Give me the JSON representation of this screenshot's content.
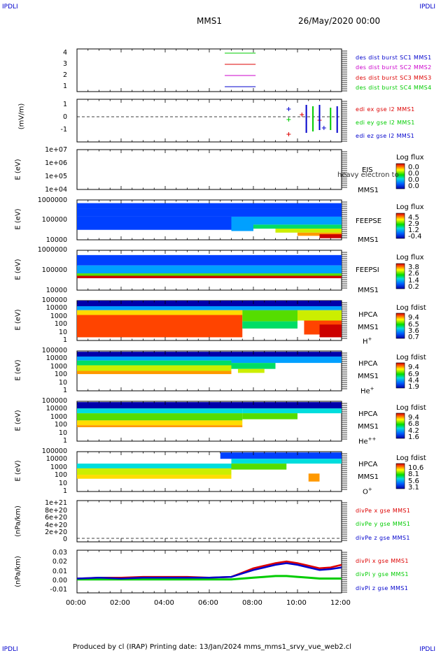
{
  "header": {
    "corner_left": "IPDLI",
    "corner_right": "IPDLI",
    "mission": "MMS1",
    "datetime": "26/May/2020 00:00"
  },
  "footer": {
    "text": "Produced by cl (IRAP)   Printing date: 13/Jan/2024   mms_mms1_srvy_vue_web2.cl",
    "corner_left": "IPDLI",
    "corner_right": "IPDLI"
  },
  "xaxis": {
    "ticks": [
      "00:00",
      "02:00",
      "04:00",
      "06:00",
      "08:00",
      "10:00",
      "12:00"
    ],
    "range_hours": [
      0,
      12
    ]
  },
  "colors": {
    "red": "#dd0000",
    "green": "#00cc00",
    "blue": "#0000cc",
    "magenta": "#cc00cc"
  },
  "panels": {
    "burst": {
      "yticks": [
        "4",
        "3",
        "2",
        "1"
      ],
      "legend": [
        {
          "text": "des dist burst SC1 MMS1",
          "color": "#0000cc"
        },
        {
          "text": "des dist burst SC2 MMS2",
          "color": "#cc00cc"
        },
        {
          "text": "des dist burst SC3 MMS3",
          "color": "#dd0000"
        },
        {
          "text": "des dist burst SC4 MMS4",
          "color": "#00cc00"
        }
      ]
    },
    "edi": {
      "ylabel": "(mV/m)",
      "yticks": [
        "1",
        "0",
        "-1"
      ],
      "legend": [
        {
          "text": "edi ex gse l2 MMS1",
          "color": "#dd0000"
        },
        {
          "text": "edi ey gse l2 MMS1",
          "color": "#00cc00"
        },
        {
          "text": "edi ez gse l2 MMS1",
          "color": "#0000cc"
        }
      ]
    },
    "eis": {
      "ylabel": "E (eV)",
      "yticks": [
        "1e+07",
        "1e+06",
        "1e+05",
        "1e+04"
      ],
      "side": [
        "EIS",
        "MMS1"
      ],
      "overlay": "heavy electron to",
      "cbar_title": "Log flux",
      "cbar_vals": [
        "0.0",
        "0.0",
        "0.0",
        "0.0"
      ]
    },
    "feepse": {
      "ylabel": "E (eV)",
      "yticks": [
        "1000000",
        "100000",
        "10000"
      ],
      "side": [
        "FEEPSE",
        "MMS1"
      ],
      "cbar_title": "Log flux",
      "cbar_vals": [
        "4.5",
        "2.9",
        "1.2",
        "-0.4"
      ]
    },
    "feepsi": {
      "ylabel": "E (eV)",
      "yticks": [
        "1000000",
        "100000",
        "10000"
      ],
      "side": [
        "FEEPSI",
        "MMS1"
      ],
      "cbar_title": "Log flux",
      "cbar_vals": [
        "3.8",
        "2.6",
        "1.4",
        "0.2"
      ]
    },
    "hpca_h": {
      "ylabel": "E (eV)",
      "yticks": [
        "100000",
        "10000",
        "1000",
        "100",
        "10",
        "1"
      ],
      "side": [
        "HPCA",
        "MMS1"
      ],
      "species": "H",
      "charge": "+",
      "cbar_title": "Log fdist",
      "cbar_vals": [
        "9.4",
        "6.5",
        "3.6",
        "0.7"
      ]
    },
    "hpca_he": {
      "ylabel": "E (eV)",
      "yticks": [
        "100000",
        "10000",
        "1000",
        "100",
        "10",
        "1"
      ],
      "side": [
        "HPCA",
        "MMS1"
      ],
      "species": "He",
      "charge": "+",
      "cbar_title": "Log fdist",
      "cbar_vals": [
        "9.4",
        "6.9",
        "4.4",
        "1.9"
      ]
    },
    "hpca_hepp": {
      "ylabel": "E (eV)",
      "yticks": [
        "100000",
        "10000",
        "1000",
        "100",
        "10",
        "1"
      ],
      "side": [
        "HPCA",
        "MMS1"
      ],
      "species": "He",
      "charge": "++",
      "cbar_title": "Log fdist",
      "cbar_vals": [
        "9.4",
        "6.8",
        "4.2",
        "1.6"
      ]
    },
    "hpca_o": {
      "ylabel": "E (eV)",
      "yticks": [
        "100000",
        "10000",
        "1000",
        "100",
        "10",
        "1"
      ],
      "side": [
        "HPCA",
        "MMS1"
      ],
      "species": "O",
      "charge": "+",
      "cbar_title": "Log fdist",
      "cbar_vals": [
        "10.6",
        "8.1",
        "5.6",
        "3.1"
      ]
    },
    "divpe": {
      "ylabel": "(nPa/km)",
      "yticks": [
        "1e+21",
        "8e+20",
        "6e+20",
        "4e+20",
        "2e+20",
        "0"
      ],
      "legend": [
        {
          "text": "divPe x gse MMS1",
          "color": "#dd0000"
        },
        {
          "text": "divPe y gse MMS1",
          "color": "#00cc00"
        },
        {
          "text": "divPe z gse MMS1",
          "color": "#0000cc"
        }
      ]
    },
    "divpi": {
      "ylabel": "(nPa/km)",
      "yticks": [
        "0.03",
        "0.02",
        "0.01",
        "0.00",
        "-0.01"
      ],
      "legend": [
        {
          "text": "divPi x gse MMS1",
          "color": "#dd0000"
        },
        {
          "text": "divPi y gse MMS1",
          "color": "#00cc00"
        },
        {
          "text": "divPi z gse MMS1",
          "color": "#0000cc"
        }
      ]
    }
  },
  "chart_data": {
    "type": "line",
    "title": "MMS1",
    "x_unit": "hours UT",
    "xlim": [
      0,
      12
    ],
    "burst_intervals": [
      {
        "name": "des dist burst SC1 MMS1",
        "level": 1,
        "x": [
          6.7,
          8.1
        ]
      },
      {
        "name": "des dist burst SC2 MMS2",
        "level": 2,
        "x": [
          6.7,
          8.1
        ]
      },
      {
        "name": "des dist burst SC3 MMS3",
        "level": 3,
        "x": [
          6.7,
          8.1
        ]
      },
      {
        "name": "des dist burst SC4 MMS4",
        "level": 4,
        "x": [
          6.7,
          8.1
        ]
      }
    ],
    "divpi": {
      "ylim": [
        -0.01,
        0.03
      ],
      "x": [
        0,
        1,
        2,
        3,
        4,
        5,
        6,
        7,
        7.5,
        8,
        8.5,
        9,
        9.5,
        10,
        10.5,
        11,
        11.5,
        12
      ],
      "series": [
        {
          "name": "divPi x gse MMS1",
          "values": [
            0.001,
            0.002,
            0.002,
            0.003,
            0.003,
            0.003,
            0.002,
            0.003,
            0.008,
            0.013,
            0.016,
            0.019,
            0.021,
            0.019,
            0.016,
            0.013,
            0.014,
            0.017
          ]
        },
        {
          "name": "divPi y gse MMS1",
          "values": [
            0.0,
            0.0,
            0.0,
            0.0,
            0.0,
            0.0,
            0.0,
            0.0,
            0.001,
            0.002,
            0.003,
            0.004,
            0.004,
            0.003,
            0.002,
            0.001,
            0.001,
            0.001
          ]
        },
        {
          "name": "divPi z gse MMS1",
          "values": [
            0.001,
            0.002,
            0.001,
            0.002,
            0.002,
            0.002,
            0.002,
            0.003,
            0.007,
            0.011,
            0.014,
            0.017,
            0.019,
            0.017,
            0.014,
            0.011,
            0.012,
            0.014
          ]
        }
      ]
    }
  }
}
